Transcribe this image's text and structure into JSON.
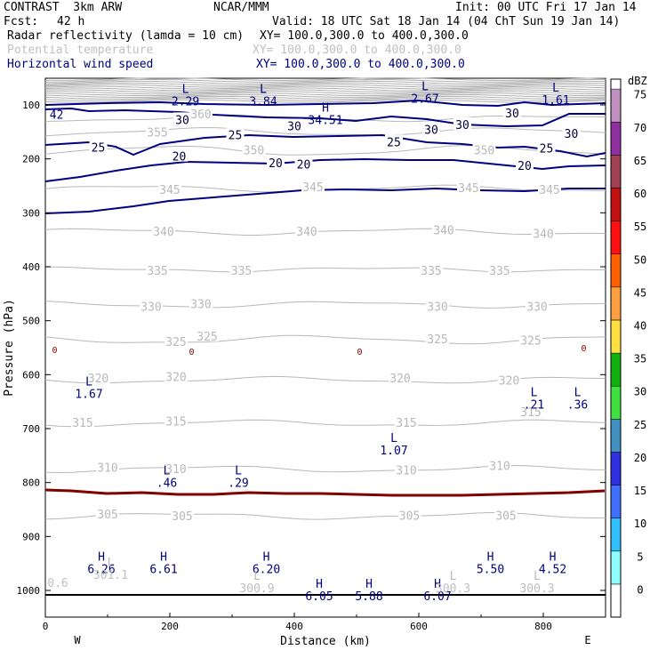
{
  "header": {
    "model": "CONTRAST  3km ARW",
    "org": "NCAR/MMM",
    "init": "Init: 00 UTC Fri 17 Jan 14",
    "fcst_label": "Fcst:",
    "fcst_value": "42 h",
    "valid": "Valid: 18 UTC Sat 18 Jan 14 (04 ChT Sun 19 Jan 14)",
    "fields": [
      {
        "name": "Radar reflectivity (lamda = 10 cm)",
        "xy": "XY= 100.0,300.0 to 400.0,300.0"
      },
      {
        "name": "Potential temperature",
        "xy": "XY= 100.0,300.0 to 400.0,300.0"
      },
      {
        "name": "Horizontal wind speed",
        "xy": "XY= 100.0,300.0 to 400.0,300.0"
      }
    ]
  },
  "chart_data": {
    "type": "cross-section",
    "xlabel": "Distance (km)",
    "ylabel": "Pressure (hPa)",
    "xlim": [
      0,
      900
    ],
    "ylim": [
      1060,
      60
    ],
    "x_ticks": [
      0,
      200,
      400,
      600,
      800
    ],
    "y_ticks": [
      100,
      200,
      300,
      400,
      500,
      600,
      700,
      800,
      900,
      1000
    ],
    "direction_labels": {
      "west": "W",
      "east": "E"
    },
    "colorbar": {
      "unit": "dBZ",
      "levels": [
        "0",
        "5",
        "10",
        "15",
        "20",
        "25",
        "30",
        "35",
        "40",
        "45",
        "50",
        "55",
        "60",
        "65",
        "70",
        "75"
      ],
      "colors": [
        "#ffffff",
        "#90ffff",
        "#30c0ff",
        "#4070ff",
        "#3030e0",
        "#4090c0",
        "#40e040",
        "#10b010",
        "#ffe040",
        "#ffa040",
        "#ff6000",
        "#ff1010",
        "#c01010",
        "#a04050",
        "#9030a0",
        "#c090c0"
      ]
    },
    "theta_labels": [
      {
        "text": "360",
        "x": 250,
        "p": 118
      },
      {
        "text": "355",
        "x": 180,
        "p": 152
      },
      {
        "text": "350",
        "x": 335,
        "p": 185
      },
      {
        "text": "350",
        "x": 705,
        "p": 185
      },
      {
        "text": "345",
        "x": 200,
        "p": 258
      },
      {
        "text": "345",
        "x": 430,
        "p": 253
      },
      {
        "text": "345",
        "x": 680,
        "p": 255
      },
      {
        "text": "345",
        "x": 810,
        "p": 258
      },
      {
        "text": "340",
        "x": 190,
        "p": 336
      },
      {
        "text": "340",
        "x": 420,
        "p": 336
      },
      {
        "text": "340",
        "x": 640,
        "p": 333
      },
      {
        "text": "340",
        "x": 800,
        "p": 340
      },
      {
        "text": "335",
        "x": 180,
        "p": 408
      },
      {
        "text": "335",
        "x": 315,
        "p": 408
      },
      {
        "text": "335",
        "x": 620,
        "p": 408
      },
      {
        "text": "335",
        "x": 730,
        "p": 408
      },
      {
        "text": "330",
        "x": 170,
        "p": 475
      },
      {
        "text": "330",
        "x": 250,
        "p": 470
      },
      {
        "text": "330",
        "x": 630,
        "p": 475
      },
      {
        "text": "330",
        "x": 790,
        "p": 475
      },
      {
        "text": "325",
        "x": 210,
        "p": 540
      },
      {
        "text": "325",
        "x": 260,
        "p": 530
      },
      {
        "text": "325",
        "x": 630,
        "p": 535
      },
      {
        "text": "325",
        "x": 780,
        "p": 538
      },
      {
        "text": "320",
        "x": 85,
        "p": 608
      },
      {
        "text": "320",
        "x": 210,
        "p": 605
      },
      {
        "text": "320",
        "x": 570,
        "p": 608
      },
      {
        "text": "320",
        "x": 745,
        "p": 612
      },
      {
        "text": "315",
        "x": 60,
        "p": 690
      },
      {
        "text": "315",
        "x": 210,
        "p": 688
      },
      {
        "text": "315",
        "x": 580,
        "p": 690
      },
      {
        "text": "315",
        "x": 780,
        "p": 670
      },
      {
        "text": "310",
        "x": 100,
        "p": 773
      },
      {
        "text": "310",
        "x": 210,
        "p": 776
      },
      {
        "text": "310",
        "x": 580,
        "p": 778
      },
      {
        "text": "310",
        "x": 730,
        "p": 770
      },
      {
        "text": "305",
        "x": 100,
        "p": 860
      },
      {
        "text": "305",
        "x": 220,
        "p": 863
      },
      {
        "text": "305",
        "x": 585,
        "p": 862
      },
      {
        "text": "305",
        "x": 740,
        "p": 862
      }
    ],
    "wind_labels": [
      {
        "text": "30",
        "x": 220,
        "p": 127
      },
      {
        "text": "30",
        "x": 400,
        "p": 139
      },
      {
        "text": "30",
        "x": 620,
        "p": 145
      },
      {
        "text": "30",
        "x": 670,
        "p": 136
      },
      {
        "text": "30",
        "x": 750,
        "p": 115
      },
      {
        "text": "30",
        "x": 845,
        "p": 153
      },
      {
        "text": "25",
        "x": 85,
        "p": 178
      },
      {
        "text": "25",
        "x": 305,
        "p": 155
      },
      {
        "text": "25",
        "x": 560,
        "p": 168
      },
      {
        "text": "25",
        "x": 805,
        "p": 180
      },
      {
        "text": "20",
        "x": 215,
        "p": 195
      },
      {
        "text": "20",
        "x": 415,
        "p": 210
      },
      {
        "text": "20",
        "x": 770,
        "p": 212
      },
      {
        "text": "20",
        "x": 370,
        "p": 207
      }
    ],
    "contour_wind_minmax": [
      {
        "type": "L",
        "value": "2.29",
        "x": 225,
        "p": 78
      },
      {
        "type": "L",
        "value": "3.84",
        "x": 350,
        "p": 78
      },
      {
        "type": "L",
        "value": "2.67",
        "x": 610,
        "p": 73
      },
      {
        "type": "L",
        "value": "1.61",
        "x": 820,
        "p": 75
      },
      {
        "type": "H",
        "value": "34.51",
        "x": 450,
        "p": 112
      },
      {
        "type": "L",
        "value": "1.67",
        "x": 70,
        "p": 620
      },
      {
        "type": "L",
        "value": ".21",
        "x": 785,
        "p": 640
      },
      {
        "type": "L",
        "value": ".36",
        "x": 855,
        "p": 640
      },
      {
        "type": "L",
        "value": "1.07",
        "x": 560,
        "p": 725
      },
      {
        "type": "L",
        "value": ".46",
        "x": 195,
        "p": 785
      },
      {
        "type": "L",
        "value": ".29",
        "x": 310,
        "p": 785
      },
      {
        "type": "H",
        "value": "6.26",
        "x": 90,
        "p": 945
      },
      {
        "type": "H",
        "value": "6.61",
        "x": 190,
        "p": 945
      },
      {
        "type": "H",
        "value": "6.20",
        "x": 355,
        "p": 945
      },
      {
        "type": "H",
        "value": "6.05",
        "x": 440,
        "p": 995
      },
      {
        "type": "H",
        "value": "5.88",
        "x": 520,
        "p": 995
      },
      {
        "type": "H",
        "value": "6.07",
        "x": 630,
        "p": 995
      },
      {
        "type": "H",
        "value": "5.50",
        "x": 715,
        "p": 945
      },
      {
        "type": "H",
        "value": "4.52",
        "x": 815,
        "p": 945
      }
    ],
    "theta_minmax": [
      {
        "type": "L",
        "value": "301.1",
        "x": 105,
        "p": 975
      },
      {
        "type": "L",
        "value": "300.9",
        "x": 340,
        "p": 1000
      },
      {
        "type": "L",
        "value": "300.3",
        "x": 655,
        "p": 1000
      },
      {
        "type": "L",
        "value": "300.3",
        "x": 790,
        "p": 1000
      },
      {
        "type": "",
        "value": "0.6",
        "x": 20,
        "p": 990
      }
    ],
    "reflectivity_zero_labels": [
      {
        "text": "0",
        "x": 15,
        "p": 555
      },
      {
        "text": "0",
        "x": 235,
        "p": 558
      },
      {
        "text": "0",
        "x": 505,
        "p": 558
      },
      {
        "text": "0",
        "x": 865,
        "p": 552
      }
    ],
    "corner_label": {
      "text": "42",
      "x": 18,
      "p": 89
    }
  }
}
